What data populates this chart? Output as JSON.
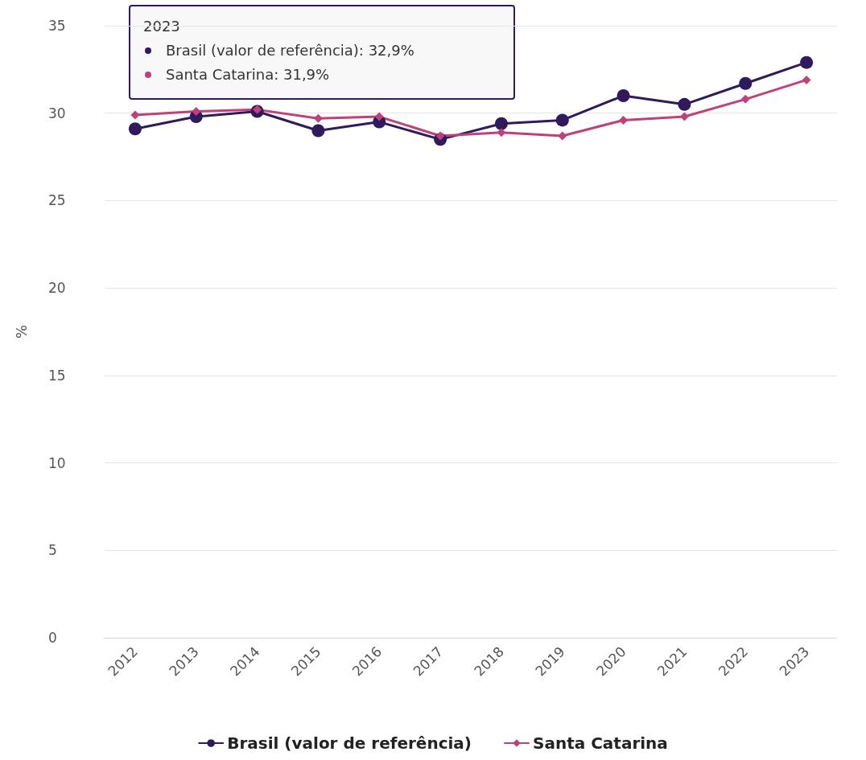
{
  "chart_data": {
    "type": "line",
    "ylabel": "%",
    "categories": [
      "2012",
      "2013",
      "2014",
      "2015",
      "2016",
      "2017",
      "2018",
      "2019",
      "2020",
      "2021",
      "2022",
      "2023"
    ],
    "series": [
      {
        "name": "Brasil (valor de referência)",
        "color": "#2e1a5c",
        "marker": "circle",
        "values": [
          29.1,
          29.8,
          30.1,
          29.0,
          29.5,
          28.5,
          29.4,
          29.6,
          31.0,
          30.5,
          31.7,
          32.9
        ]
      },
      {
        "name": "Santa Catarina",
        "color": "#c0407a",
        "marker": "diamond",
        "values": [
          29.9,
          30.1,
          30.2,
          29.7,
          29.8,
          28.7,
          28.9,
          28.7,
          29.6,
          29.8,
          30.8,
          31.9
        ]
      }
    ],
    "ylim": [
      0,
      35
    ],
    "yticks": [
      0,
      5,
      10,
      15,
      20,
      25,
      30,
      35
    ],
    "grid": "y",
    "legend": "bottom",
    "annotations": [
      "2023",
      "Brasil (valor de referência): 32,9%",
      "Santa Catarina: 31,9%"
    ]
  }
}
